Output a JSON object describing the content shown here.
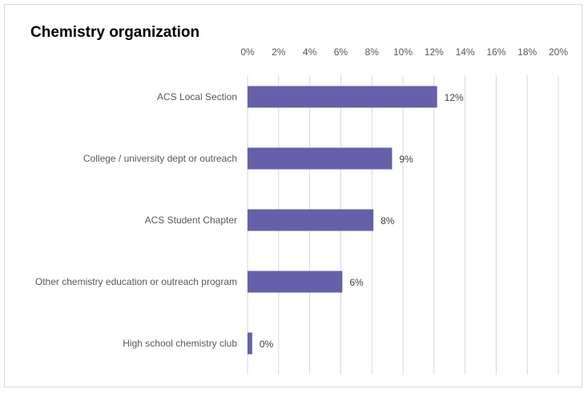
{
  "chart_data": {
    "type": "bar",
    "orientation": "horizontal",
    "title": "Chemistry organization",
    "categories": [
      "ACS Local Section",
      "College / university dept or outreach",
      "ACS Student Chapter",
      "Other chemistry education or outreach program",
      "High school chemistry club"
    ],
    "values": [
      12.2,
      9.3,
      8.1,
      6.1,
      0.3
    ],
    "data_labels": [
      "12%",
      "9%",
      "8%",
      "6%",
      "0%"
    ],
    "x_ticks": [
      "0%",
      "2%",
      "4%",
      "6%",
      "8%",
      "10%",
      "12%",
      "14%",
      "16%",
      "18%",
      "20%"
    ],
    "xlim": [
      0,
      20
    ],
    "x_axis_position": "top",
    "grid": true,
    "legend": "none",
    "colors": {
      "bar": "#6560a9",
      "grid": "#d9d9d9"
    }
  }
}
